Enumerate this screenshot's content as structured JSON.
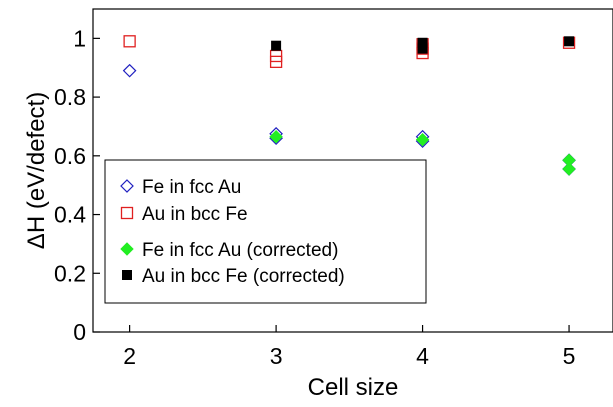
{
  "chart_data": {
    "type": "scatter",
    "title": "",
    "xlabel": "Cell size",
    "ylabel": "ΔH (eV/defect)",
    "xlim": [
      1.75,
      5.3
    ],
    "ylim": [
      0,
      1.1
    ],
    "xticks": [
      2,
      3,
      4,
      5
    ],
    "yticks": [
      0,
      0.2,
      0.4,
      0.6,
      0.8,
      1
    ],
    "tick_labels_x": [
      "2",
      "3",
      "4",
      "5"
    ],
    "tick_labels_y": [
      "0",
      "0.2",
      "0.4",
      "0.6",
      "0.8",
      "1"
    ],
    "grid": false,
    "legend_position": "center-left",
    "series": [
      {
        "name": "Fe in fcc Au",
        "marker": "diamond-open",
        "color": "#2020c0",
        "points": [
          [
            2,
            0.89
          ],
          [
            3,
            0.66
          ],
          [
            3,
            0.675
          ],
          [
            4,
            0.65
          ],
          [
            4,
            0.665
          ],
          [
            5,
            0.555
          ],
          [
            5,
            0.585
          ]
        ]
      },
      {
        "name": "Au in bcc Fe",
        "marker": "square-open",
        "color": "#e02020",
        "points": [
          [
            2,
            0.99
          ],
          [
            3,
            0.92
          ],
          [
            3,
            0.94
          ],
          [
            4,
            0.95
          ],
          [
            4,
            0.965
          ],
          [
            4,
            0.98
          ],
          [
            5,
            0.985
          ]
        ]
      },
      {
        "name": "Fe in fcc Au (corrected)",
        "marker": "diamond-filled",
        "color": "#22ee22",
        "points": [
          [
            3,
            0.665
          ],
          [
            4,
            0.655
          ],
          [
            5,
            0.555
          ],
          [
            5,
            0.585
          ]
        ]
      },
      {
        "name": "Au in bcc Fe (corrected)",
        "marker": "square-filled",
        "color": "#000000",
        "points": [
          [
            3,
            0.975
          ],
          [
            4,
            0.965
          ],
          [
            4,
            0.985
          ],
          [
            5,
            0.99
          ]
        ]
      }
    ]
  }
}
